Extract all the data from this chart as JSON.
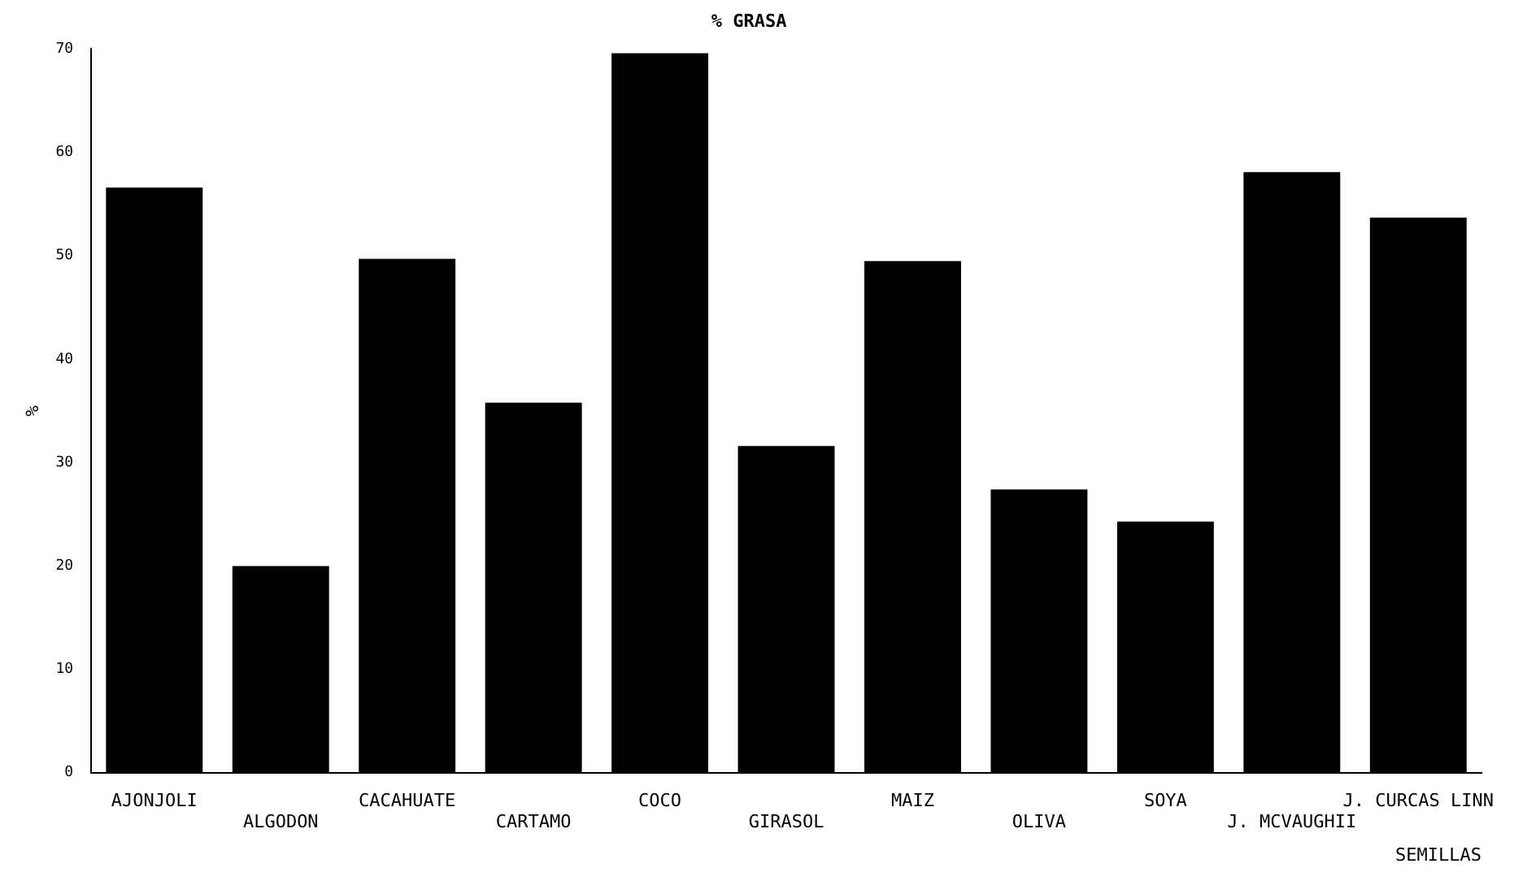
{
  "chart_data": {
    "type": "bar",
    "title": "% GRASA",
    "ylabel": "%",
    "xlabel": "SEMILLAS",
    "categories": [
      "AJONJOLI",
      "ALGODON",
      "CACAHUATE",
      "CARTAMO",
      "COCO",
      "GIRASOL",
      "MAIZ",
      "OLIVA",
      "SOYA",
      "J. MCVAUGHII",
      "J. CURCAS LINN"
    ],
    "values": [
      56.6,
      20,
      49.7,
      35.8,
      69.6,
      31.6,
      49.5,
      27.4,
      24.3,
      58.1,
      53.7
    ],
    "color": "#000000",
    "ylim": [
      0,
      70
    ],
    "yticks": [
      0,
      10,
      20,
      30,
      40,
      50,
      60,
      70
    ],
    "grid": false,
    "legend": false
  }
}
